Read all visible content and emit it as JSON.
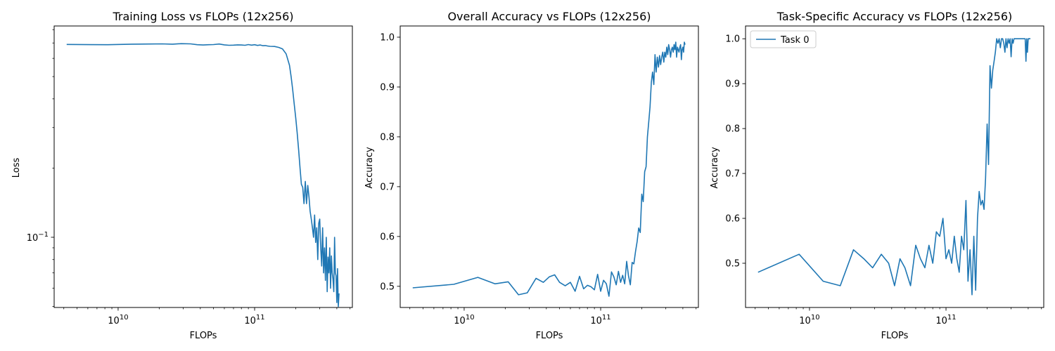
{
  "chart_data": [
    {
      "type": "line",
      "title": "Training Loss vs FLOPs (12x256)",
      "xlabel": "FLOPs",
      "ylabel": "Loss",
      "xscale": "log",
      "yscale": "log",
      "xlim": [
        3400000000.0,
        520000000000.0
      ],
      "ylim": [
        0.0495,
        0.83
      ],
      "xticks": [
        {
          "value": 10000000000.0,
          "base": "10",
          "exp": "10"
        },
        {
          "value": 100000000000.0,
          "base": "10",
          "exp": "11"
        }
      ],
      "yticks": [
        {
          "value": 0.1,
          "base": "10",
          "exp": "−1"
        }
      ],
      "grid": false,
      "series": [
        {
          "color": "#1f77b4",
          "x": [
            4200000000.0,
            8400000000.0,
            12600000000.0,
            16800000000.0,
            21000000000.0,
            25000000000.0,
            29000000000.0,
            34000000000.0,
            38000000000.0,
            42000000000.0,
            46000000000.0,
            50000000000.0,
            55000000000.0,
            60000000000.0,
            65000000000.0,
            70000000000.0,
            75000000000.0,
            80000000000.0,
            85000000000.0,
            90000000000.0,
            95000000000.0,
            100000000000.0,
            105000000000.0,
            110000000000.0,
            115000000000.0,
            120000000000.0,
            125000000000.0,
            130000000000.0,
            140000000000.0,
            150000000000.0,
            160000000000.0,
            170000000000.0,
            180000000000.0,
            185000000000.0,
            190000000000.0,
            195000000000.0,
            200000000000.0,
            205000000000.0,
            210000000000.0,
            215000000000.0,
            220000000000.0,
            225000000000.0,
            230000000000.0,
            235000000000.0,
            240000000000.0,
            245000000000.0,
            250000000000.0,
            255000000000.0,
            260000000000.0,
            265000000000.0,
            270000000000.0,
            275000000000.0,
            280000000000.0,
            285000000000.0,
            290000000000.0,
            295000000000.0,
            300000000000.0,
            305000000000.0,
            310000000000.0,
            315000000000.0,
            320000000000.0,
            325000000000.0,
            330000000000.0,
            335000000000.0,
            340000000000.0,
            345000000000.0,
            350000000000.0,
            355000000000.0,
            360000000000.0,
            365000000000.0,
            370000000000.0,
            375000000000.0,
            380000000000.0,
            385000000000.0,
            390000000000.0,
            395000000000.0,
            400000000000.0,
            405000000000.0,
            410000000000.0,
            415000000000.0
          ],
          "y": [
            0.69,
            0.688,
            0.692,
            0.693,
            0.694,
            0.692,
            0.695,
            0.694,
            0.688,
            0.686,
            0.688,
            0.689,
            0.693,
            0.687,
            0.684,
            0.685,
            0.687,
            0.686,
            0.684,
            0.689,
            0.685,
            0.688,
            0.683,
            0.686,
            0.681,
            0.682,
            0.679,
            0.677,
            0.676,
            0.67,
            0.66,
            0.628,
            0.56,
            0.5,
            0.44,
            0.38,
            0.33,
            0.285,
            0.24,
            0.2,
            0.17,
            0.165,
            0.14,
            0.175,
            0.14,
            0.168,
            0.15,
            0.13,
            0.12,
            0.11,
            0.1,
            0.125,
            0.095,
            0.11,
            0.08,
            0.115,
            0.12,
            0.09,
            0.075,
            0.11,
            0.07,
            0.09,
            0.065,
            0.1,
            0.058,
            0.082,
            0.07,
            0.09,
            0.06,
            0.083,
            0.07,
            0.066,
            0.058,
            0.1,
            0.07,
            0.068,
            0.052,
            0.073,
            0.05,
            0.057
          ]
        }
      ]
    },
    {
      "type": "line",
      "title": "Overall Accuracy vs FLOPs (12x256)",
      "xlabel": "FLOPs",
      "ylabel": "Accuracy",
      "xscale": "log",
      "yscale": "linear",
      "xlim": [
        3400000000.0,
        520000000000.0
      ],
      "ylim": [
        0.4575,
        1.0225
      ],
      "xticks": [
        {
          "value": 10000000000.0,
          "base": "10",
          "exp": "10"
        },
        {
          "value": 100000000000.0,
          "base": "10",
          "exp": "11"
        }
      ],
      "yticks": [
        {
          "value": 0.5,
          "label": "0.5"
        },
        {
          "value": 0.6,
          "label": "0.6"
        },
        {
          "value": 0.7,
          "label": "0.7"
        },
        {
          "value": 0.8,
          "label": "0.8"
        },
        {
          "value": 0.9,
          "label": "0.9"
        },
        {
          "value": 1.0,
          "label": "1.0"
        }
      ],
      "grid": false,
      "series": [
        {
          "color": "#1f77b4",
          "x": [
            4200000000.0,
            8400000000.0,
            12600000000.0,
            16800000000.0,
            21000000000.0,
            25000000000.0,
            29000000000.0,
            33600000000.0,
            38000000000.0,
            42000000000.0,
            46000000000.0,
            50000000000.0,
            55000000000.0,
            60000000000.0,
            65000000000.0,
            70000000000.0,
            75000000000.0,
            80000000000.0,
            85000000000.0,
            90000000000.0,
            95000000000.0,
            100000000000.0,
            105000000000.0,
            110000000000.0,
            115000000000.0,
            120000000000.0,
            125000000000.0,
            130000000000.0,
            135000000000.0,
            140000000000.0,
            145000000000.0,
            150000000000.0,
            155000000000.0,
            160000000000.0,
            165000000000.0,
            170000000000.0,
            175000000000.0,
            180000000000.0,
            185000000000.0,
            190000000000.0,
            195000000000.0,
            200000000000.0,
            205000000000.0,
            210000000000.0,
            215000000000.0,
            220000000000.0,
            225000000000.0,
            230000000000.0,
            235000000000.0,
            240000000000.0,
            245000000000.0,
            250000000000.0,
            255000000000.0,
            260000000000.0,
            265000000000.0,
            270000000000.0,
            275000000000.0,
            280000000000.0,
            285000000000.0,
            290000000000.0,
            295000000000.0,
            300000000000.0,
            305000000000.0,
            310000000000.0,
            315000000000.0,
            320000000000.0,
            325000000000.0,
            330000000000.0,
            335000000000.0,
            340000000000.0,
            345000000000.0,
            350000000000.0,
            355000000000.0,
            360000000000.0,
            365000000000.0,
            370000000000.0,
            375000000000.0,
            380000000000.0,
            385000000000.0,
            390000000000.0,
            395000000000.0,
            400000000000.0,
            405000000000.0,
            410000000000.0,
            415000000000.0
          ],
          "y": [
            0.497,
            0.504,
            0.518,
            0.505,
            0.509,
            0.483,
            0.487,
            0.516,
            0.508,
            0.519,
            0.523,
            0.508,
            0.501,
            0.508,
            0.49,
            0.52,
            0.495,
            0.502,
            0.499,
            0.493,
            0.524,
            0.49,
            0.512,
            0.505,
            0.48,
            0.529,
            0.519,
            0.503,
            0.53,
            0.508,
            0.522,
            0.505,
            0.55,
            0.521,
            0.503,
            0.548,
            0.545,
            0.57,
            0.59,
            0.617,
            0.608,
            0.685,
            0.67,
            0.73,
            0.74,
            0.8,
            0.83,
            0.86,
            0.91,
            0.93,
            0.905,
            0.965,
            0.93,
            0.96,
            0.94,
            0.963,
            0.945,
            0.96,
            0.97,
            0.95,
            0.97,
            0.96,
            0.98,
            0.965,
            0.985,
            0.975,
            0.96,
            0.975,
            0.98,
            0.97,
            0.985,
            0.975,
            0.99,
            0.96,
            0.98,
            0.975,
            0.97,
            0.98,
            0.985,
            0.955,
            0.975,
            0.98,
            0.97,
            0.99,
            0.985
          ]
        }
      ]
    },
    {
      "type": "line",
      "title": "Task-Specific Accuracy vs FLOPs (12x256)",
      "xlabel": "FLOPs",
      "ylabel": "Accuracy",
      "xscale": "log",
      "yscale": "linear",
      "xlim": [
        3400000000.0,
        520000000000.0
      ],
      "ylim": [
        0.4015,
        1.0285
      ],
      "xticks": [
        {
          "value": 10000000000.0,
          "base": "10",
          "exp": "10"
        },
        {
          "value": 100000000000.0,
          "base": "10",
          "exp": "11"
        }
      ],
      "yticks": [
        {
          "value": 0.5,
          "label": "0.5"
        },
        {
          "value": 0.6,
          "label": "0.6"
        },
        {
          "value": 0.7,
          "label": "0.7"
        },
        {
          "value": 0.8,
          "label": "0.8"
        },
        {
          "value": 0.9,
          "label": "0.9"
        },
        {
          "value": 1.0,
          "label": "1.0"
        }
      ],
      "grid": false,
      "legend": {
        "position": "upper left",
        "entries": [
          "Task 0"
        ]
      },
      "series": [
        {
          "name": "Task 0",
          "color": "#1f77b4",
          "x": [
            4200000000.0,
            8400000000.0,
            12600000000.0,
            16800000000.0,
            21000000000.0,
            25000000000.0,
            29000000000.0,
            33600000000.0,
            38000000000.0,
            42000000000.0,
            46000000000.0,
            50000000000.0,
            55000000000.0,
            60000000000.0,
            65000000000.0,
            70000000000.0,
            75000000000.0,
            80000000000.0,
            85000000000.0,
            90000000000.0,
            95000000000.0,
            100000000000.0,
            105000000000.0,
            110000000000.0,
            115000000000.0,
            120000000000.0,
            125000000000.0,
            130000000000.0,
            135000000000.0,
            140000000000.0,
            145000000000.0,
            150000000000.0,
            155000000000.0,
            160000000000.0,
            165000000000.0,
            170000000000.0,
            175000000000.0,
            180000000000.0,
            185000000000.0,
            190000000000.0,
            195000000000.0,
            200000000000.0,
            205000000000.0,
            210000000000.0,
            215000000000.0,
            220000000000.0,
            225000000000.0,
            230000000000.0,
            235000000000.0,
            240000000000.0,
            245000000000.0,
            250000000000.0,
            255000000000.0,
            260000000000.0,
            265000000000.0,
            270000000000.0,
            275000000000.0,
            280000000000.0,
            285000000000.0,
            290000000000.0,
            295000000000.0,
            300000000000.0,
            305000000000.0,
            310000000000.0,
            315000000000.0,
            320000000000.0,
            325000000000.0,
            330000000000.0,
            335000000000.0,
            340000000000.0,
            345000000000.0,
            350000000000.0,
            355000000000.0,
            360000000000.0,
            365000000000.0,
            370000000000.0,
            375000000000.0,
            380000000000.0,
            385000000000.0,
            390000000000.0,
            395000000000.0,
            400000000000.0,
            405000000000.0,
            410000000000.0,
            415000000000.0
          ],
          "y": [
            0.48,
            0.52,
            0.46,
            0.45,
            0.53,
            0.51,
            0.49,
            0.52,
            0.5,
            0.45,
            0.51,
            0.49,
            0.45,
            0.54,
            0.51,
            0.49,
            0.54,
            0.5,
            0.57,
            0.56,
            0.6,
            0.51,
            0.53,
            0.5,
            0.56,
            0.51,
            0.48,
            0.56,
            0.53,
            0.64,
            0.46,
            0.53,
            0.43,
            0.56,
            0.44,
            0.6,
            0.66,
            0.63,
            0.64,
            0.62,
            0.69,
            0.81,
            0.72,
            0.94,
            0.89,
            0.93,
            0.95,
            0.97,
            1.0,
            0.99,
            1.0,
            0.98,
            1.0,
            1.0,
            0.99,
            0.97,
            1.0,
            0.98,
            1.0,
            0.99,
            1.0,
            0.96,
            1.0,
            0.99,
            1.0,
            1.0,
            1.0,
            1.0,
            1.0,
            1.0,
            1.0,
            1.0,
            1.0,
            1.0,
            1.0,
            1.0,
            1.0,
            1.0,
            0.95,
            1.0,
            0.97,
            1.0,
            1.0,
            1.0,
            1.0
          ]
        }
      ]
    }
  ]
}
